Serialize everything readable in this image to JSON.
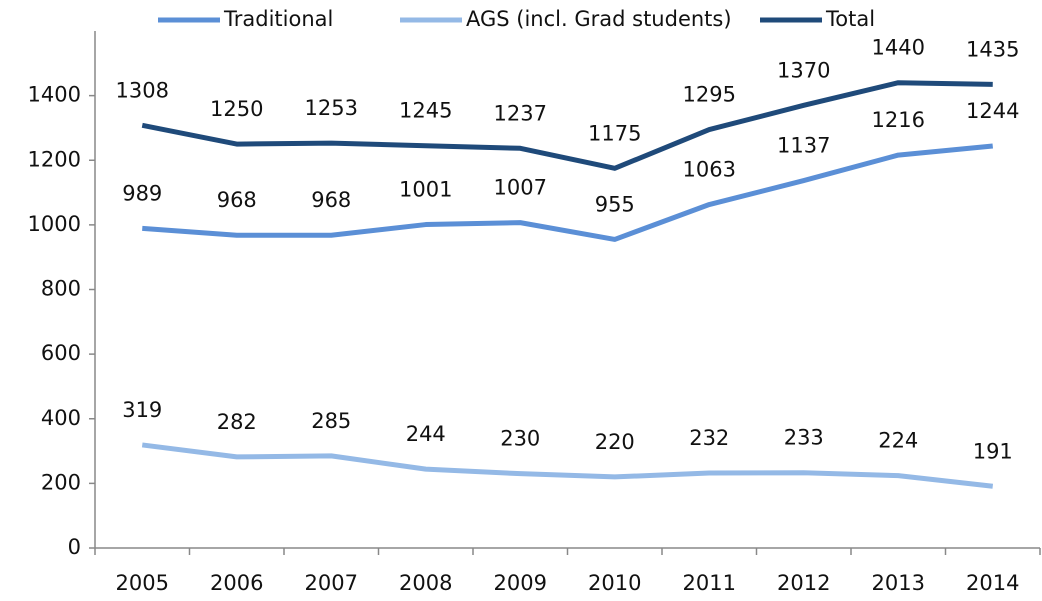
{
  "chart_data": {
    "type": "line",
    "categories": [
      "2005",
      "2006",
      "2007",
      "2008",
      "2009",
      "2010",
      "2011",
      "2012",
      "2013",
      "2014"
    ],
    "series": [
      {
        "name": "Traditional",
        "color": "#5b8fd6",
        "values": [
          989,
          968,
          968,
          1001,
          1007,
          955,
          1063,
          1137,
          1216,
          1244
        ]
      },
      {
        "name": "AGS (incl. Grad students)",
        "color": "#94b9e6",
        "values": [
          319,
          282,
          285,
          244,
          230,
          220,
          232,
          233,
          224,
          191
        ]
      },
      {
        "name": "Total",
        "color": "#1f4a7a",
        "values": [
          1308,
          1250,
          1253,
          1245,
          1237,
          1175,
          1295,
          1370,
          1440,
          1435
        ]
      }
    ],
    "ylim": [
      0,
      1600
    ],
    "yticks": [
      0,
      200,
      400,
      600,
      800,
      1000,
      1200,
      1400
    ],
    "grid": false,
    "legend": "top"
  }
}
